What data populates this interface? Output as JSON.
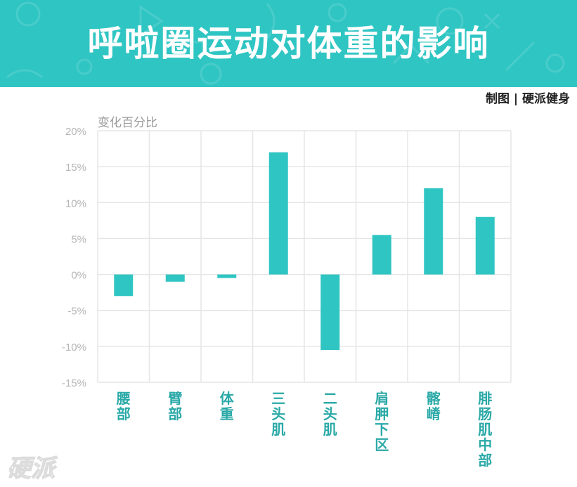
{
  "banner": {
    "title": "呼啦圈运动对体重的影响",
    "color": "#2fc5c3"
  },
  "credit": "制图 | 硬派健身",
  "watermark": "硬派",
  "chart_data": {
    "type": "bar",
    "ylabel": "变化百分比",
    "categories": [
      "腰部",
      "臂部",
      "体重",
      "三头肌",
      "二头肌",
      "肩胛下区",
      "髂嵴",
      "腓肠肌中部"
    ],
    "values": [
      -3,
      -1,
      -0.5,
      17,
      -10.5,
      5.5,
      12,
      8
    ],
    "ylim": [
      -15,
      20
    ],
    "yticks": [
      "20%",
      "15%",
      "10%",
      "5%",
      "0%",
      "-5%",
      "-10%",
      "-15%"
    ],
    "grid": true,
    "bar_color": "#2fc5c3",
    "label_color": "#2aa9a7"
  }
}
